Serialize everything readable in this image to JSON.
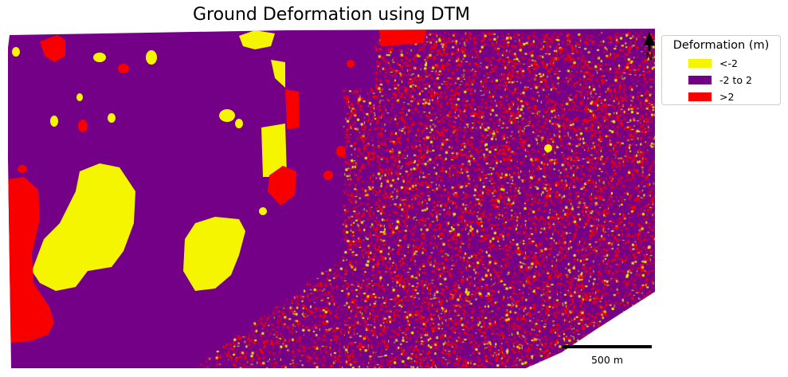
{
  "title": "Ground Deformation using DTM",
  "legend": {
    "title": "Deformation (m)",
    "items": [
      {
        "label": "<-2",
        "color": "#f5f500"
      },
      {
        "label": "-2 to 2",
        "color": "#750088"
      },
      {
        "label": ">2",
        "color": "#f80000"
      }
    ]
  },
  "scale_bar": {
    "label": "500 m"
  },
  "north_arrow": {
    "label": "N"
  },
  "colors": {
    "background": "#ffffff",
    "scale_bar": "#000000"
  }
}
